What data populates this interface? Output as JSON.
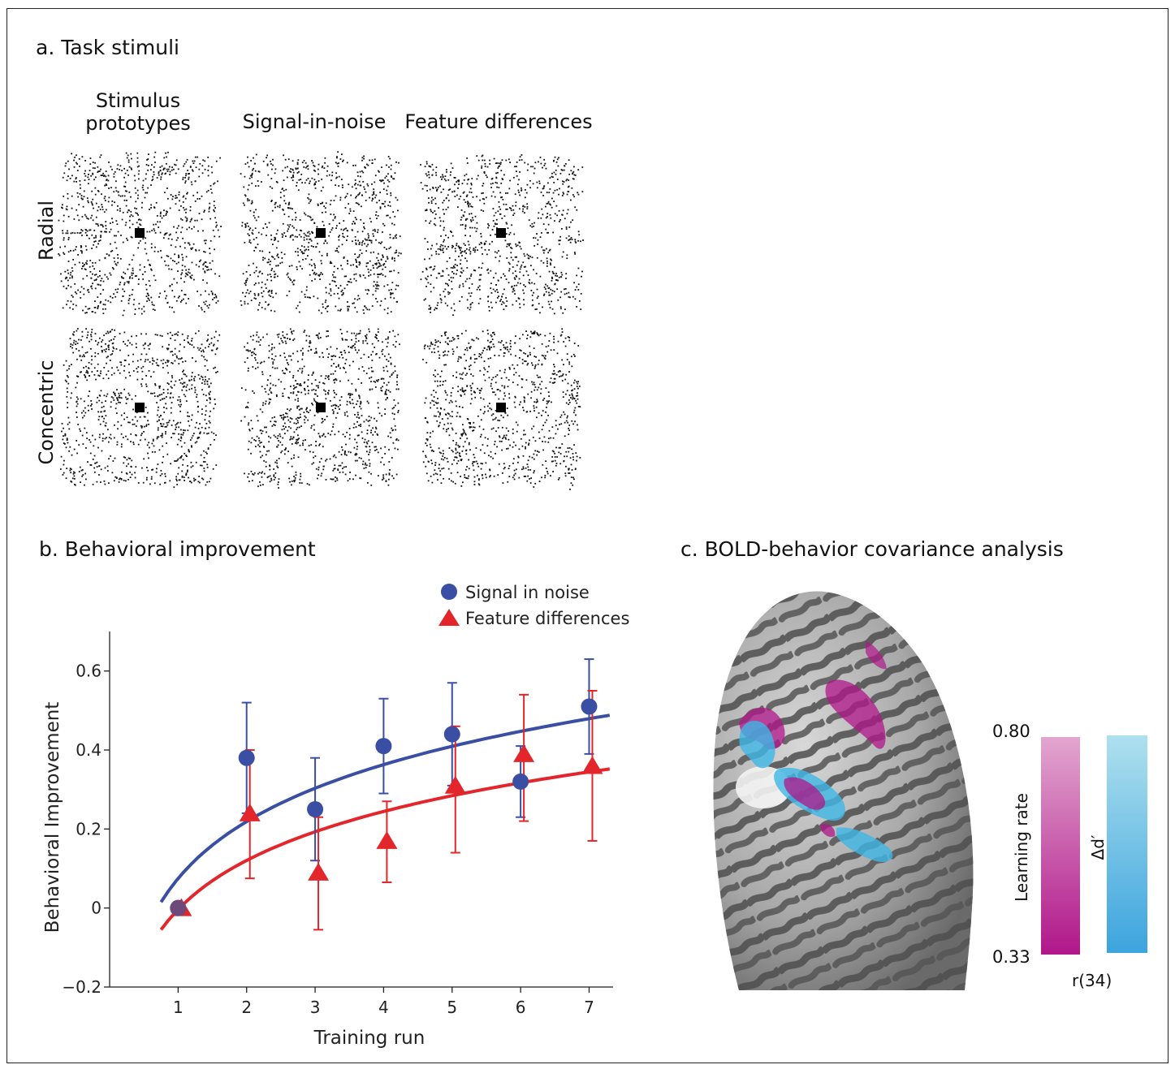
{
  "panel_a": {
    "title": "a. Task stimuli",
    "columns": [
      "Stimulus prototypes",
      "Signal-in-noise",
      "Feature differences"
    ],
    "column_first_lines": [
      "Stimulus",
      "prototypes"
    ],
    "rows": [
      "Radial",
      "Concentric"
    ]
  },
  "panel_b": {
    "title": "b. Behavioral improvement"
  },
  "panel_c": {
    "title": "c. BOLD-behavior covariance analysis",
    "scale_max": "0.80",
    "scale_min": "0.33",
    "bar1_label": "Learning rate",
    "bar2_label": "Δd′",
    "axis_label": "r(34)",
    "colors": {
      "learning_rate_top": "#e2a6cf",
      "learning_rate_bottom": "#b0178a",
      "dprime_top": "#aee0ee",
      "dprime_bottom": "#3ca4de"
    }
  },
  "chart_data": {
    "type": "scatter",
    "xlabel": "Training run",
    "ylabel": "Behavioral Improvement",
    "xlim": [
      0,
      7.35
    ],
    "ylim": [
      -0.2,
      0.7
    ],
    "xticks": [
      1,
      2,
      3,
      4,
      5,
      6,
      7
    ],
    "yticks": [
      -0.2,
      0,
      0.2,
      0.4,
      0.6
    ],
    "ytick_labels": [
      "−0.2",
      "0",
      "0.2",
      "0.4",
      "0.6"
    ],
    "legend_position": "top-right",
    "series": [
      {
        "name": "Signal in noise",
        "marker": "circle",
        "color": "#3a4fa3",
        "x": [
          1,
          2,
          3,
          4,
          5,
          6,
          7
        ],
        "y": [
          0,
          0.38,
          0.25,
          0.41,
          0.44,
          0.32,
          0.51
        ],
        "err_low": [
          0,
          0.24,
          0.12,
          0.29,
          0.31,
          0.23,
          0.39
        ],
        "err_high": [
          0,
          0.52,
          0.38,
          0.53,
          0.57,
          0.41,
          0.63
        ],
        "fit": {
          "x_start": 0.75,
          "x_end": 7.3,
          "y_start": 0.015,
          "y_end": 0.488
        }
      },
      {
        "name": "Feature differences",
        "marker": "triangle",
        "color": "#e3262b",
        "x": [
          1,
          2,
          3,
          4,
          5,
          6,
          7
        ],
        "y": [
          0,
          0.24,
          0.09,
          0.17,
          0.31,
          0.39,
          0.36
        ],
        "err_low": [
          0,
          0.075,
          -0.055,
          0.065,
          0.14,
          0.22,
          0.17
        ],
        "err_high": [
          0,
          0.4,
          0.23,
          0.27,
          0.46,
          0.54,
          0.55
        ],
        "fit": {
          "x_start": 0.75,
          "x_end": 7.3,
          "y_start": -0.055,
          "y_end": 0.352
        }
      }
    ]
  }
}
